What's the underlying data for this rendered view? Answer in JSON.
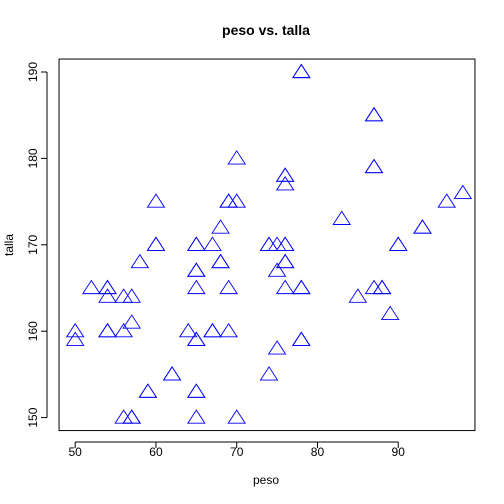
{
  "chart_data": {
    "type": "scatter",
    "title": "peso vs. talla",
    "xlabel": "peso",
    "ylabel": "talla",
    "xlim": [
      48.0,
      99.5
    ],
    "ylim": [
      148.5,
      191.5
    ],
    "xticks": [
      50,
      60,
      70,
      80,
      90
    ],
    "yticks": [
      150,
      160,
      170,
      180,
      190
    ],
    "marker": "open-triangle",
    "marker_color": "#0000ff",
    "grid": false,
    "points": [
      {
        "x": 50,
        "y": 160
      },
      {
        "x": 50,
        "y": 159
      },
      {
        "x": 52,
        "y": 165
      },
      {
        "x": 54,
        "y": 165
      },
      {
        "x": 54,
        "y": 165
      },
      {
        "x": 54,
        "y": 164
      },
      {
        "x": 54,
        "y": 160
      },
      {
        "x": 54,
        "y": 160
      },
      {
        "x": 56,
        "y": 164
      },
      {
        "x": 56,
        "y": 160
      },
      {
        "x": 56,
        "y": 150
      },
      {
        "x": 57,
        "y": 164
      },
      {
        "x": 57,
        "y": 161
      },
      {
        "x": 57,
        "y": 150
      },
      {
        "x": 57,
        "y": 150
      },
      {
        "x": 58,
        "y": 168
      },
      {
        "x": 59,
        "y": 153
      },
      {
        "x": 59,
        "y": 153
      },
      {
        "x": 60,
        "y": 175
      },
      {
        "x": 60,
        "y": 170
      },
      {
        "x": 60,
        "y": 170
      },
      {
        "x": 62,
        "y": 155
      },
      {
        "x": 62,
        "y": 155
      },
      {
        "x": 64,
        "y": 160
      },
      {
        "x": 65,
        "y": 170
      },
      {
        "x": 65,
        "y": 170
      },
      {
        "x": 65,
        "y": 167
      },
      {
        "x": 65,
        "y": 167
      },
      {
        "x": 65,
        "y": 165
      },
      {
        "x": 65,
        "y": 159
      },
      {
        "x": 65,
        "y": 159
      },
      {
        "x": 65,
        "y": 153
      },
      {
        "x": 65,
        "y": 153
      },
      {
        "x": 65,
        "y": 150
      },
      {
        "x": 67,
        "y": 170
      },
      {
        "x": 67,
        "y": 160
      },
      {
        "x": 67,
        "y": 160
      },
      {
        "x": 68,
        "y": 172
      },
      {
        "x": 68,
        "y": 168
      },
      {
        "x": 68,
        "y": 168
      },
      {
        "x": 69,
        "y": 175
      },
      {
        "x": 69,
        "y": 175
      },
      {
        "x": 69,
        "y": 165
      },
      {
        "x": 69,
        "y": 160
      },
      {
        "x": 70,
        "y": 180
      },
      {
        "x": 70,
        "y": 175
      },
      {
        "x": 70,
        "y": 150
      },
      {
        "x": 74,
        "y": 170
      },
      {
        "x": 74,
        "y": 170
      },
      {
        "x": 74,
        "y": 155
      },
      {
        "x": 75,
        "y": 170
      },
      {
        "x": 75,
        "y": 167
      },
      {
        "x": 75,
        "y": 158
      },
      {
        "x": 76,
        "y": 178
      },
      {
        "x": 76,
        "y": 178
      },
      {
        "x": 76,
        "y": 177
      },
      {
        "x": 76,
        "y": 170
      },
      {
        "x": 76,
        "y": 170
      },
      {
        "x": 76,
        "y": 168
      },
      {
        "x": 76,
        "y": 168
      },
      {
        "x": 76,
        "y": 165
      },
      {
        "x": 78,
        "y": 190
      },
      {
        "x": 78,
        "y": 190
      },
      {
        "x": 78,
        "y": 165
      },
      {
        "x": 78,
        "y": 165
      },
      {
        "x": 78,
        "y": 159
      },
      {
        "x": 78,
        "y": 159
      },
      {
        "x": 83,
        "y": 173
      },
      {
        "x": 85,
        "y": 164
      },
      {
        "x": 87,
        "y": 185
      },
      {
        "x": 87,
        "y": 185
      },
      {
        "x": 87,
        "y": 179
      },
      {
        "x": 87,
        "y": 179
      },
      {
        "x": 87,
        "y": 165
      },
      {
        "x": 88,
        "y": 165
      },
      {
        "x": 88,
        "y": 165
      },
      {
        "x": 89,
        "y": 162
      },
      {
        "x": 90,
        "y": 170
      },
      {
        "x": 90,
        "y": 170
      },
      {
        "x": 93,
        "y": 172
      },
      {
        "x": 93,
        "y": 172
      },
      {
        "x": 96,
        "y": 175
      },
      {
        "x": 98,
        "y": 176
      }
    ]
  }
}
